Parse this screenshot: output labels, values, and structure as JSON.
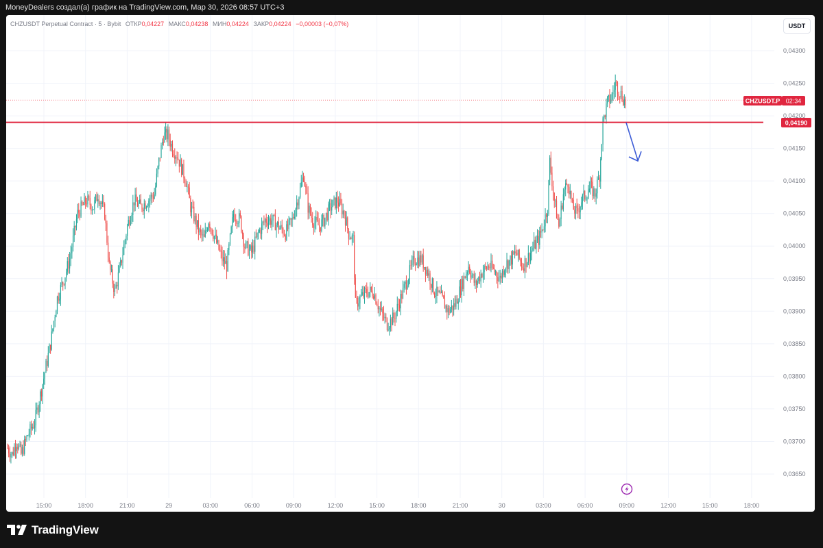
{
  "header": {
    "text": "MoneyDealers создал(а) график на TradingView.com, Мар 30, 2026 08:57 UTC+3"
  },
  "legend": {
    "symbol": "CHZUSDT Perpetual Contract · 5 · Bybit",
    "open_label": "ОТКР",
    "open_value": "0,04227",
    "high_label": "МАКС",
    "high_value": "0,04238",
    "low_label": "МИН",
    "low_value": "0,04224",
    "close_label": "ЗАКР",
    "close_value": "0,04224",
    "change_value": "−0,00003 (−0,07%)"
  },
  "currency_button": "USDT",
  "price_labels": {
    "symbol_tag": "CHZUSDT.P",
    "countdown": "02:34",
    "level": "0,04190"
  },
  "footer": {
    "brand": "TradingView"
  },
  "colors": {
    "up": "#26a69a",
    "down": "#ef5350",
    "level_line": "#e0263f",
    "arrow": "#3b5bd6",
    "tag": "#e0263f",
    "alert_icon": "#9c27b0"
  },
  "icons": [
    "tradingview-logo-icon",
    "lightning-alert-icon",
    "down-arrow-annotation"
  ],
  "chart_data": {
    "type": "candlestick",
    "symbol": "CHZUSDT.P",
    "y_tick_labels": [
      "0,04300",
      "0,04250",
      "0,04200",
      "0,04150",
      "0,04100",
      "0,04050",
      "0,04000",
      "0,03950",
      "0,03900",
      "0,03850",
      "0,03800",
      "0,03750",
      "0,03700",
      "0,03650"
    ],
    "x_tick_labels": [
      "15:00",
      "18:00",
      "21:00",
      "29",
      "03:00",
      "06:00",
      "09:00",
      "12:00",
      "15:00",
      "18:00",
      "21:00",
      "30",
      "03:00",
      "06:00",
      "09:00",
      "12:00",
      "15:00",
      "18:00"
    ],
    "ylim": [
      0.0363,
      0.0433
    ],
    "horizontal_level": 0.0419,
    "current_price": 0.04224,
    "price_path": [
      [
        0,
        0.0369
      ],
      [
        4,
        0.0368
      ],
      [
        8,
        0.037
      ],
      [
        12,
        0.0368
      ],
      [
        18,
        0.0371
      ],
      [
        24,
        0.0373
      ],
      [
        30,
        0.0378
      ],
      [
        38,
        0.0385
      ],
      [
        44,
        0.0392
      ],
      [
        50,
        0.0395
      ],
      [
        55,
        0.0398
      ],
      [
        62,
        0.0405
      ],
      [
        70,
        0.0407
      ],
      [
        76,
        0.0406
      ],
      [
        80,
        0.0408
      ],
      [
        86,
        0.0405
      ],
      [
        90,
        0.0397
      ],
      [
        95,
        0.0393
      ],
      [
        100,
        0.0397
      ],
      [
        106,
        0.0403
      ],
      [
        112,
        0.0407
      ],
      [
        118,
        0.0406
      ],
      [
        124,
        0.0407
      ],
      [
        130,
        0.0408
      ],
      [
        134,
        0.0413
      ],
      [
        138,
        0.0417
      ],
      [
        142,
        0.0417
      ],
      [
        146,
        0.0415
      ],
      [
        150,
        0.0414
      ],
      [
        154,
        0.0412
      ],
      [
        158,
        0.041
      ],
      [
        162,
        0.0406
      ],
      [
        166,
        0.0404
      ],
      [
        170,
        0.0402
      ],
      [
        174,
        0.0401
      ],
      [
        178,
        0.0404
      ],
      [
        184,
        0.0401
      ],
      [
        190,
        0.0398
      ],
      [
        194,
        0.0397
      ],
      [
        200,
        0.0405
      ],
      [
        206,
        0.0404
      ],
      [
        210,
        0.04
      ],
      [
        216,
        0.0399
      ],
      [
        222,
        0.0402
      ],
      [
        228,
        0.0404
      ],
      [
        234,
        0.0404
      ],
      [
        240,
        0.0403
      ],
      [
        246,
        0.0402
      ],
      [
        252,
        0.0404
      ],
      [
        258,
        0.0408
      ],
      [
        262,
        0.0411
      ],
      [
        266,
        0.0406
      ],
      [
        270,
        0.0404
      ],
      [
        276,
        0.0403
      ],
      [
        280,
        0.0404
      ],
      [
        286,
        0.0406
      ],
      [
        292,
        0.0407
      ],
      [
        298,
        0.0405
      ],
      [
        302,
        0.0402
      ],
      [
        306,
        0.0401
      ],
      [
        308,
        0.0391
      ],
      [
        312,
        0.0392
      ],
      [
        318,
        0.0393
      ],
      [
        324,
        0.0393
      ],
      [
        330,
        0.039
      ],
      [
        336,
        0.0388
      ],
      [
        342,
        0.0389
      ],
      [
        348,
        0.0392
      ],
      [
        354,
        0.0395
      ],
      [
        360,
        0.0398
      ],
      [
        366,
        0.0398
      ],
      [
        372,
        0.0396
      ],
      [
        378,
        0.0393
      ],
      [
        384,
        0.0392
      ],
      [
        390,
        0.039
      ],
      [
        396,
        0.0391
      ],
      [
        402,
        0.0394
      ],
      [
        408,
        0.0397
      ],
      [
        414,
        0.0394
      ],
      [
        420,
        0.0396
      ],
      [
        426,
        0.0397
      ],
      [
        432,
        0.0396
      ],
      [
        436,
        0.0395
      ],
      [
        440,
        0.0397
      ],
      [
        446,
        0.0398
      ],
      [
        450,
        0.0399
      ],
      [
        456,
        0.0397
      ],
      [
        460,
        0.0398
      ],
      [
        466,
        0.04
      ],
      [
        470,
        0.0401
      ],
      [
        474,
        0.0403
      ],
      [
        478,
        0.0406
      ],
      [
        480,
        0.0413
      ],
      [
        484,
        0.0407
      ],
      [
        488,
        0.0403
      ],
      [
        492,
        0.0408
      ],
      [
        496,
        0.041
      ],
      [
        500,
        0.0406
      ],
      [
        504,
        0.0405
      ],
      [
        508,
        0.0407
      ],
      [
        512,
        0.0408
      ],
      [
        516,
        0.0409
      ],
      [
        520,
        0.0408
      ],
      [
        524,
        0.0411
      ],
      [
        527,
        0.0419
      ],
      [
        531,
        0.0422
      ],
      [
        535,
        0.0423
      ],
      [
        538,
        0.0425
      ],
      [
        541,
        0.0424
      ],
      [
        544,
        0.0423
      ],
      [
        547,
        0.0422
      ]
    ]
  }
}
